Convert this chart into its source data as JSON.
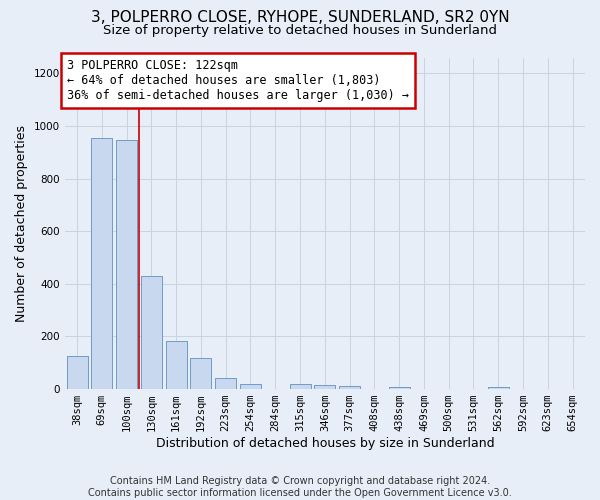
{
  "title_line1": "3, POLPERRO CLOSE, RYHOPE, SUNDERLAND, SR2 0YN",
  "title_line2": "Size of property relative to detached houses in Sunderland",
  "xlabel": "Distribution of detached houses by size in Sunderland",
  "ylabel": "Number of detached properties",
  "categories": [
    "38sqm",
    "69sqm",
    "100sqm",
    "130sqm",
    "161sqm",
    "192sqm",
    "223sqm",
    "254sqm",
    "284sqm",
    "315sqm",
    "346sqm",
    "377sqm",
    "408sqm",
    "438sqm",
    "469sqm",
    "500sqm",
    "531sqm",
    "562sqm",
    "592sqm",
    "623sqm",
    "654sqm"
  ],
  "values": [
    125,
    955,
    948,
    428,
    182,
    120,
    42,
    20,
    0,
    18,
    15,
    10,
    0,
    8,
    0,
    0,
    0,
    8,
    0,
    0,
    0
  ],
  "bar_color": "#c8d8ee",
  "bar_edge_color": "#6090c0",
  "grid_color": "#c8d4e0",
  "bg_color": "#e8eef8",
  "annotation_text": "3 POLPERRO CLOSE: 122sqm\n← 64% of detached houses are smaller (1,803)\n36% of semi-detached houses are larger (1,030) →",
  "annotation_box_facecolor": "#ffffff",
  "annotation_box_edgecolor": "#cc0000",
  "vline_x": 2.5,
  "vline_color": "#cc0000",
  "ylim": [
    0,
    1260
  ],
  "yticks": [
    0,
    200,
    400,
    600,
    800,
    1000,
    1200
  ],
  "footer": "Contains HM Land Registry data © Crown copyright and database right 2024.\nContains public sector information licensed under the Open Government Licence v3.0.",
  "title_fontsize": 11,
  "subtitle_fontsize": 9.5,
  "ylabel_fontsize": 9,
  "xlabel_fontsize": 9,
  "tick_fontsize": 7.5,
  "annot_fontsize": 8.5,
  "footer_fontsize": 7
}
